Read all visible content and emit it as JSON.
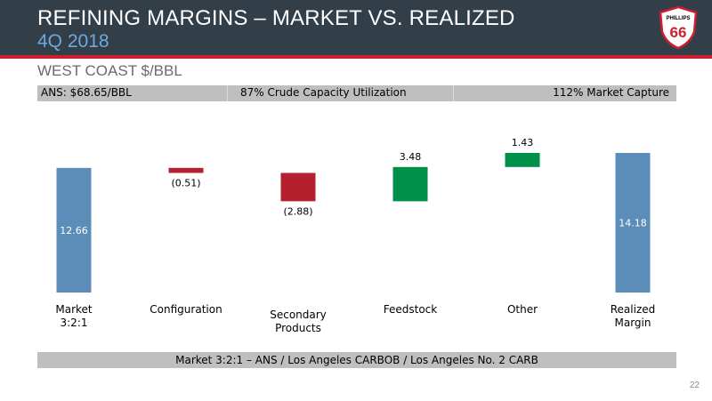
{
  "header": {
    "title": "REFINING MARGINS – MARKET VS. REALIZED",
    "subtitle": "4Q 2018",
    "logo_top": "PHILLIPS",
    "logo_number": "66"
  },
  "section_title": "WEST COAST $/BBL",
  "info_bar": {
    "left": "ANS: $68.65/BBL",
    "center": "87% Crude Capacity Utilization",
    "right": "112% Market Capture"
  },
  "colors": {
    "header_bg": "#333f48",
    "accent_red": "#cc1f2f",
    "total_bar": "#5b8db8",
    "negative_bar": "#b5202e",
    "positive_bar": "#00904a",
    "strip_gray": "#bfbfbf"
  },
  "chart_data": {
    "type": "waterfall",
    "categories": [
      "Market\n3:2:1",
      "Configuration",
      "Secondary\nProducts",
      "Feedstock",
      "Other",
      "Realized\nMargin"
    ],
    "values": [
      12.66,
      -0.51,
      -2.88,
      3.48,
      1.43,
      14.18
    ],
    "labels": [
      "12.66",
      "(0.51)",
      "(2.88)",
      "3.48",
      "1.43",
      "14.18"
    ],
    "kinds": [
      "total",
      "delta",
      "delta",
      "delta",
      "delta",
      "total"
    ]
  },
  "footer_note": "Market 3:2:1 – ANS / Los Angeles CARBOB / Los Angeles No. 2 CARB",
  "page_number": "22"
}
